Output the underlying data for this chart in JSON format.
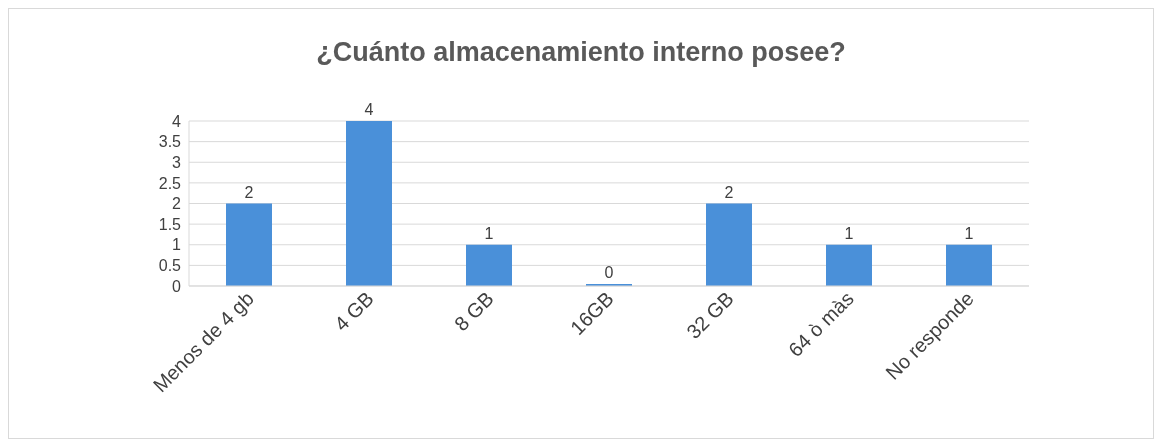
{
  "chart_data": {
    "type": "bar",
    "title": "¿Cuánto almacenamiento interno posee?",
    "categories": [
      "Menos de 4 gb",
      "4 GB",
      "8 GB",
      "16GB",
      "32 GB",
      "64 ò màs",
      "No responde"
    ],
    "values": [
      2,
      4,
      1,
      0,
      2,
      1,
      1
    ],
    "color": "#4a90d9",
    "ylim": [
      0,
      4
    ],
    "yticks": [
      0,
      0.5,
      1,
      1.5,
      2,
      2.5,
      3,
      3.5,
      4
    ],
    "grid": "y",
    "data_labels": true
  }
}
